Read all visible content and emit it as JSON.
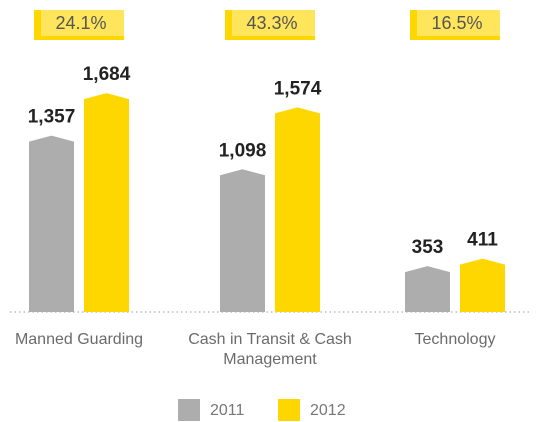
{
  "chart_data": {
    "type": "bar",
    "categories": [
      "Manned Guarding",
      "Cash in Transit & Cash Management",
      "Technology"
    ],
    "annotations": [
      "24.1%",
      "43.3%",
      "16.5%"
    ],
    "series": [
      {
        "name": "2011",
        "color": "#adadad",
        "values": [
          1357,
          1098,
          353
        ],
        "value_labels": [
          "1,357",
          "1,098",
          "353"
        ]
      },
      {
        "name": "2012",
        "color": "#ffd700",
        "values": [
          1684,
          1574,
          411
        ],
        "value_labels": [
          "1,684",
          "1,574",
          "411"
        ]
      }
    ],
    "legend": "bottom"
  }
}
